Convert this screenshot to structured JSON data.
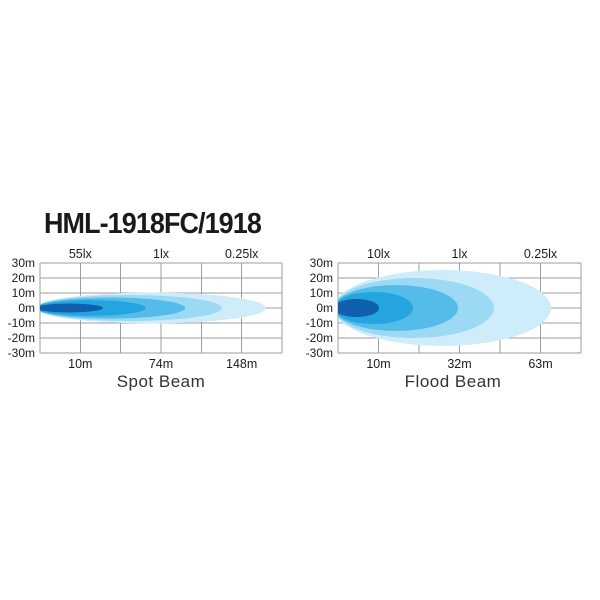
{
  "title": "HML-1918FC/1918",
  "colors": {
    "background": "#ffffff",
    "grid": "#9e9e9e",
    "text": "#1c1c1c",
    "beam_levels_outer_to_inner": [
      "#cfecfb",
      "#9cd9f4",
      "#55bce9",
      "#25a5e0",
      "#0f5fae"
    ]
  },
  "chart_data": [
    {
      "type": "area",
      "title": "Spot Beam",
      "top_axis_labels": [
        "55lx",
        "1lx",
        "0.25lx"
      ],
      "bottom_axis_labels": [
        "10m",
        "74m",
        "148m"
      ],
      "y_axis_labels": [
        "30m",
        "20m",
        "10m",
        "0m",
        "-10m",
        "-20m",
        "-30m"
      ],
      "y_range_m": [
        -30,
        30
      ],
      "grid_cols": 6,
      "grid_rows": 6,
      "legend_position": "none",
      "zones": [
        {
          "illuminance": "55lx",
          "distance": "10m"
        },
        {
          "illuminance": "1lx",
          "distance": "74m"
        },
        {
          "illuminance": "0.25lx",
          "distance": "148m"
        }
      ],
      "contours_outer_to_inner": [
        {
          "tip_frac": 0.934,
          "half_height_m": 10.3
        },
        {
          "tip_frac": 0.752,
          "half_height_m": 8.7
        },
        {
          "tip_frac": 0.6,
          "half_height_m": 7.0
        },
        {
          "tip_frac": 0.438,
          "half_height_m": 5.3
        },
        {
          "tip_frac": 0.26,
          "half_height_m": 3.0
        }
      ]
    },
    {
      "type": "area",
      "title": "Flood Beam",
      "top_axis_labels": [
        "10lx",
        "1lx",
        "0.25lx"
      ],
      "bottom_axis_labels": [
        "10m",
        "32m",
        "63m"
      ],
      "y_axis_labels": [
        "30m",
        "20m",
        "10m",
        "0m",
        "-10m",
        "-20m",
        "-30m"
      ],
      "y_range_m": [
        -30,
        30
      ],
      "grid_cols": 6,
      "grid_rows": 6,
      "legend_position": "none",
      "zones": [
        {
          "illuminance": "10lx",
          "distance": "10m"
        },
        {
          "illuminance": "1lx",
          "distance": "32m"
        },
        {
          "illuminance": "0.25lx",
          "distance": "63m"
        }
      ],
      "contours_outer_to_inner": [
        {
          "tip_frac": 0.877,
          "half_height_m": 25.3
        },
        {
          "tip_frac": 0.642,
          "half_height_m": 20.0
        },
        {
          "tip_frac": 0.494,
          "half_height_m": 15.3
        },
        {
          "tip_frac": 0.309,
          "half_height_m": 10.7
        },
        {
          "tip_frac": 0.169,
          "half_height_m": 6.0
        }
      ]
    }
  ]
}
